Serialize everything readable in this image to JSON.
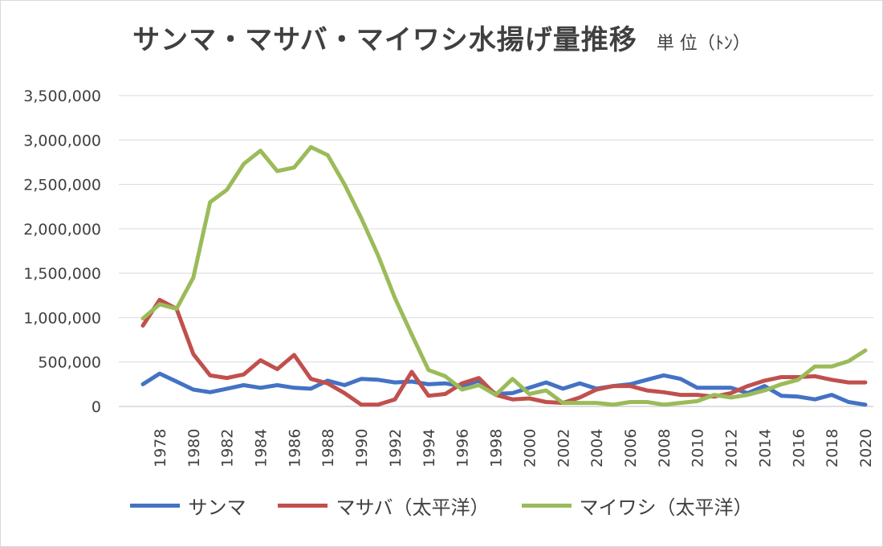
{
  "chart_data": {
    "type": "line",
    "title": "サンマ・マサバ・マイワシ水揚げ量推移",
    "unit": "単 位（ﾄﾝ）",
    "xlabel": "",
    "ylabel": "",
    "ylim": [
      0,
      3500000
    ],
    "yticks": [
      "3,500,000",
      "3,000,000",
      "2,500,000",
      "2,000,000",
      "1,500,000",
      "1,000,000",
      "500,000",
      "0"
    ],
    "ytick_values": [
      3500000,
      3000000,
      2500000,
      2000000,
      1500000,
      1000000,
      500000,
      0
    ],
    "xlim": [
      1977,
      2020
    ],
    "xticks": [
      1978,
      1980,
      1982,
      1984,
      1986,
      1988,
      1990,
      1992,
      1994,
      1996,
      1998,
      2000,
      2002,
      2004,
      2006,
      2008,
      2010,
      2012,
      2014,
      2016,
      2018,
      2020
    ],
    "grid": "horizontal",
    "legend_position": "bottom",
    "x": [
      1977,
      1978,
      1979,
      1980,
      1981,
      1982,
      1983,
      1984,
      1985,
      1986,
      1987,
      1988,
      1989,
      1990,
      1991,
      1992,
      1993,
      1994,
      1995,
      1996,
      1997,
      1998,
      1999,
      2000,
      2001,
      2002,
      2003,
      2004,
      2005,
      2006,
      2007,
      2008,
      2009,
      2010,
      2011,
      2012,
      2013,
      2014,
      2015,
      2016,
      2017,
      2018,
      2019,
      2020
    ],
    "series": [
      {
        "name": "サンマ",
        "color": "#4472c4",
        "values": [
          250000,
          370000,
          280000,
          190000,
          160000,
          200000,
          240000,
          210000,
          240000,
          210000,
          200000,
          290000,
          240000,
          310000,
          300000,
          270000,
          280000,
          250000,
          260000,
          230000,
          290000,
          140000,
          150000,
          210000,
          270000,
          200000,
          260000,
          200000,
          230000,
          250000,
          300000,
          350000,
          310000,
          210000,
          210000,
          210000,
          150000,
          230000,
          120000,
          110000,
          80000,
          130000,
          50000,
          20000
        ]
      },
      {
        "name": "マサバ（太平洋）",
        "color": "#c0504d",
        "values": [
          910000,
          1200000,
          1100000,
          590000,
          350000,
          320000,
          360000,
          520000,
          420000,
          580000,
          310000,
          260000,
          150000,
          20000,
          20000,
          80000,
          390000,
          120000,
          140000,
          260000,
          320000,
          130000,
          80000,
          90000,
          50000,
          40000,
          100000,
          190000,
          230000,
          230000,
          180000,
          160000,
          130000,
          130000,
          110000,
          150000,
          230000,
          290000,
          330000,
          330000,
          340000,
          300000,
          270000,
          270000
        ]
      },
      {
        "name": "マイワシ（太平洋）",
        "color": "#9bbb59",
        "values": [
          990000,
          1150000,
          1100000,
          1450000,
          2300000,
          2440000,
          2730000,
          2880000,
          2650000,
          2690000,
          2920000,
          2830000,
          2500000,
          2120000,
          1700000,
          1220000,
          810000,
          410000,
          340000,
          190000,
          240000,
          130000,
          310000,
          140000,
          180000,
          40000,
          40000,
          40000,
          20000,
          50000,
          50000,
          20000,
          40000,
          60000,
          130000,
          100000,
          130000,
          180000,
          250000,
          300000,
          450000,
          450000,
          510000,
          630000
        ]
      }
    ]
  }
}
